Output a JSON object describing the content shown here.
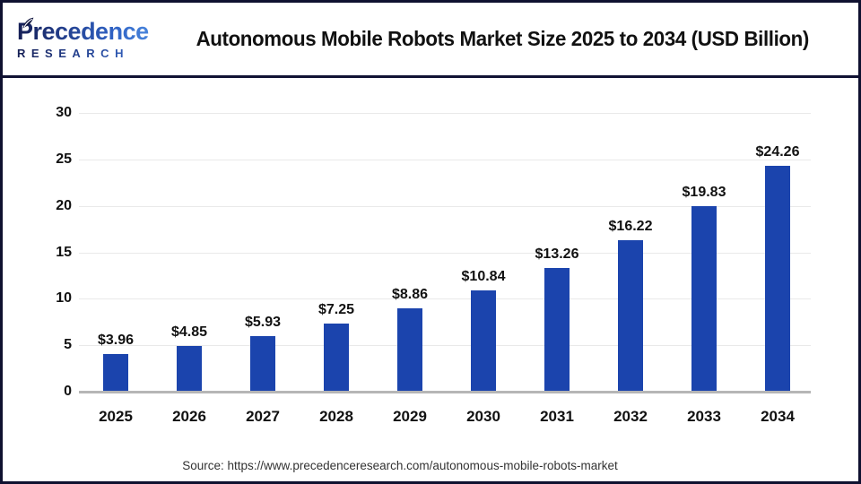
{
  "header": {
    "logo_line1": "Precedence",
    "logo_line2": "RESEARCH",
    "title": "Autonomous Mobile Robots Market Size 2025 to 2034 (USD Billion)"
  },
  "chart_data": {
    "type": "bar",
    "title": "Autonomous Mobile Robots Market Size 2025 to 2034 (USD Billion)",
    "categories": [
      "2025",
      "2026",
      "2027",
      "2028",
      "2029",
      "2030",
      "2031",
      "2032",
      "2033",
      "2034"
    ],
    "values": [
      3.96,
      4.85,
      5.93,
      7.25,
      8.86,
      10.84,
      13.26,
      16.22,
      19.83,
      24.26
    ],
    "value_labels": [
      "$3.96",
      "$4.85",
      "$5.93",
      "$7.25",
      "$8.86",
      "$10.84",
      "$13.26",
      "$16.22",
      "$19.83",
      "$24.26"
    ],
    "xlabel": "",
    "ylabel": "",
    "ylim": [
      0,
      30
    ],
    "yticks": [
      0,
      5,
      10,
      15,
      20,
      25,
      30
    ],
    "grid": true,
    "legend": false,
    "bar_color": "#1b44ad",
    "units": "USD Billion"
  },
  "footer": {
    "source": "Source: https://www.precedenceresearch.com/autonomous-mobile-robots-market"
  },
  "colors": {
    "bar": "#1b44ad",
    "frame_border": "#0f1130",
    "header_divider": "#101233",
    "gridline": "#e9e9e9",
    "axis_line": "#b6b6b6",
    "text": "#111111",
    "source_text": "#333333",
    "logo_navy": "#161f55",
    "logo_blue": "#4c8ae0"
  }
}
